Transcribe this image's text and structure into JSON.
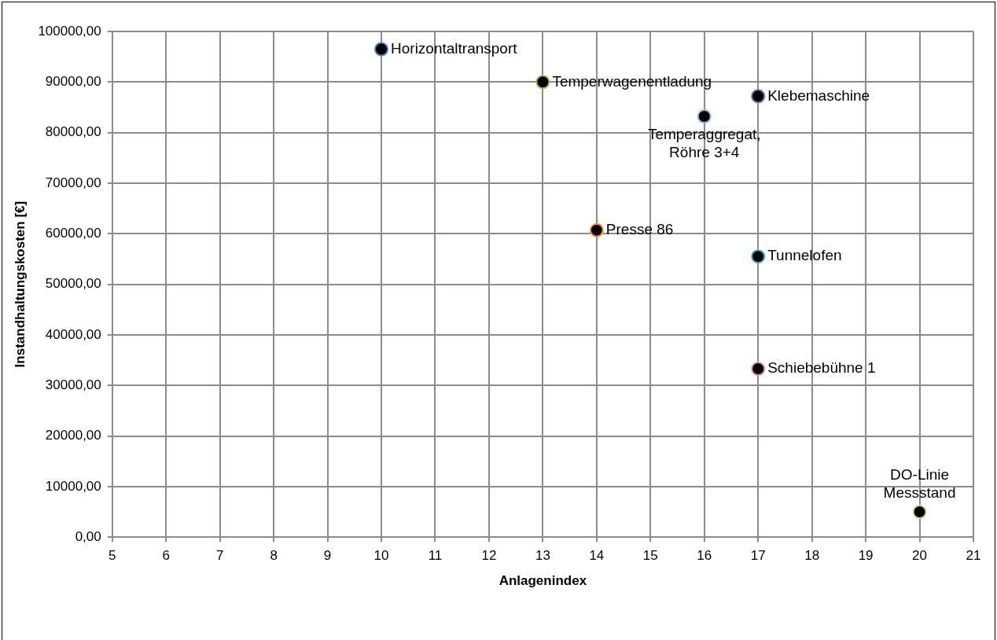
{
  "chart_data": {
    "type": "scatter",
    "xlabel": "Anlagenindex",
    "ylabel": "Instandhaltungskosten [€]",
    "xlim": [
      5,
      21
    ],
    "xticks": [
      5,
      6,
      7,
      8,
      9,
      10,
      11,
      12,
      13,
      14,
      15,
      16,
      17,
      18,
      19,
      20,
      21
    ],
    "ylim": [
      0,
      100000
    ],
    "yticks": [
      {
        "value": 0,
        "label": "0,00"
      },
      {
        "value": 10000,
        "label": "10000,00"
      },
      {
        "value": 20000,
        "label": "20000,00"
      },
      {
        "value": 30000,
        "label": "30000,00"
      },
      {
        "value": 40000,
        "label": "40000,00"
      },
      {
        "value": 50000,
        "label": "50000,00"
      },
      {
        "value": 60000,
        "label": "60000,00"
      },
      {
        "value": 70000,
        "label": "70000,00"
      },
      {
        "value": 80000,
        "label": "80000,00"
      },
      {
        "value": 90000,
        "label": "90000,00"
      },
      {
        "value": 100000,
        "label": "100000,00"
      }
    ],
    "grid": true,
    "legend": false,
    "marker": "circle",
    "series": [
      {
        "name": "Horizontaltransport",
        "color": "#4f81bd",
        "x": [
          10
        ],
        "values": [
          96500
        ]
      },
      {
        "name": "Temperwagenentladung",
        "color": "#9bbb59",
        "x": [
          13
        ],
        "values": [
          90000
        ]
      },
      {
        "name": "Klebemaschine",
        "color": "#8064a2",
        "x": [
          17
        ],
        "values": [
          87200
        ]
      },
      {
        "name": "Temperaggregat, Röhre 3+4",
        "color": "#95b3d7",
        "x": [
          16
        ],
        "values": [
          83200
        ]
      },
      {
        "name": "Presse 86",
        "color": "#f79646",
        "x": [
          14
        ],
        "values": [
          60700
        ]
      },
      {
        "name": "Tunnelofen",
        "color": "#4bacc6",
        "x": [
          17
        ],
        "values": [
          55500
        ]
      },
      {
        "name": "Schiebebühne 1",
        "color": "#d99694",
        "x": [
          17
        ],
        "values": [
          33300
        ]
      },
      {
        "name": "DO-Linie Messstand",
        "color": "#c3d69b",
        "x": [
          20
        ],
        "values": [
          5000
        ]
      }
    ]
  }
}
